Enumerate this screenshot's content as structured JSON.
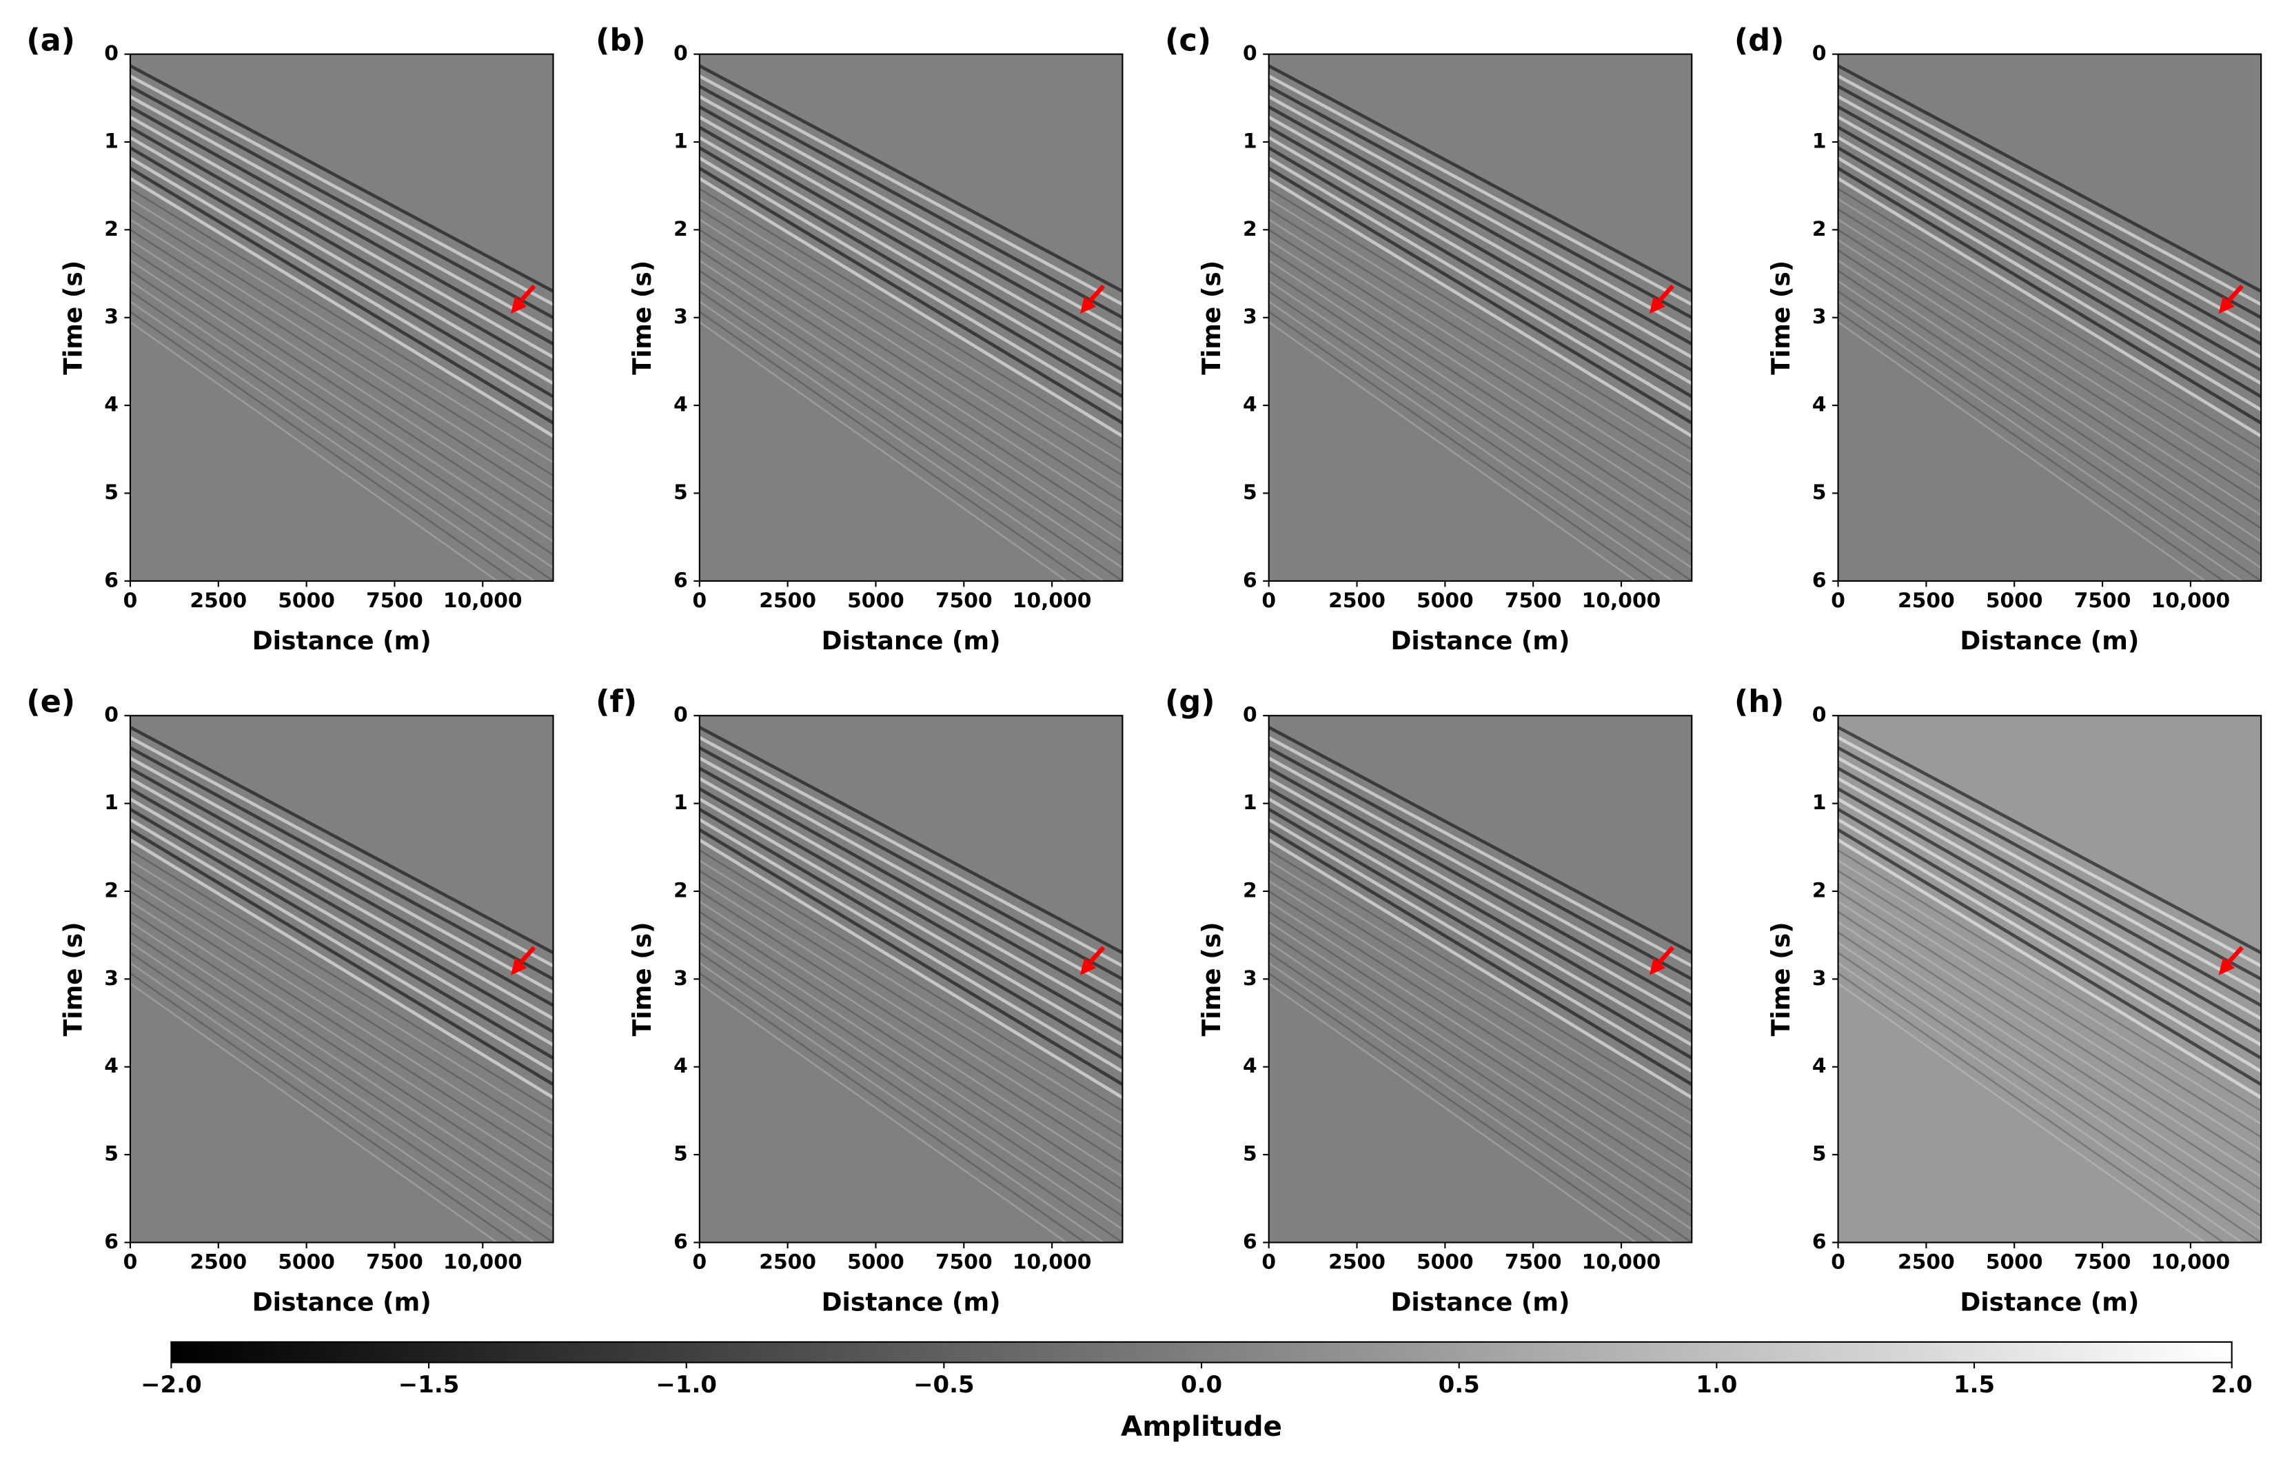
{
  "chart_data": [
    {
      "type": "image",
      "panel_label": "(a)",
      "xlabel": "Distance (m)",
      "ylabel": "Time (s)",
      "xlim": [
        0,
        12000
      ],
      "ylim": [
        6,
        0
      ],
      "xticks": [
        0,
        2500,
        5000,
        7500,
        {
          "value": 10000,
          "label": "10,000"
        }
      ],
      "yticks": [
        0,
        1,
        2,
        3,
        4,
        5,
        6
      ],
      "background": "#808080"
    },
    {
      "type": "image",
      "panel_label": "(b)",
      "xlabel": "Distance (m)",
      "ylabel": "Time (s)",
      "xlim": [
        0,
        12000
      ],
      "ylim": [
        6,
        0
      ],
      "xticks": [
        0,
        2500,
        5000,
        7500,
        {
          "value": 10000,
          "label": "10,000"
        }
      ],
      "yticks": [
        0,
        1,
        2,
        3,
        4,
        5,
        6
      ],
      "background": "#808080"
    },
    {
      "type": "image",
      "panel_label": "(c)",
      "xlabel": "Distance (m)",
      "ylabel": "Time (s)",
      "xlim": [
        0,
        12000
      ],
      "ylim": [
        6,
        0
      ],
      "xticks": [
        0,
        2500,
        5000,
        7500,
        {
          "value": 10000,
          "label": "10,000"
        }
      ],
      "yticks": [
        0,
        1,
        2,
        3,
        4,
        5,
        6
      ],
      "background": "#808080"
    },
    {
      "type": "image",
      "panel_label": "(d)",
      "xlabel": "Distance (m)",
      "ylabel": "Time (s)",
      "xlim": [
        0,
        12000
      ],
      "ylim": [
        6,
        0
      ],
      "xticks": [
        0,
        2500,
        5000,
        7500,
        {
          "value": 10000,
          "label": "10,000"
        }
      ],
      "yticks": [
        0,
        1,
        2,
        3,
        4,
        5,
        6
      ],
      "background": "#808080"
    },
    {
      "type": "image",
      "panel_label": "(e)",
      "xlabel": "Distance (m)",
      "ylabel": "Time (s)",
      "xlim": [
        0,
        12000
      ],
      "ylim": [
        6,
        0
      ],
      "xticks": [
        0,
        2500,
        5000,
        7500,
        {
          "value": 10000,
          "label": "10,000"
        }
      ],
      "yticks": [
        0,
        1,
        2,
        3,
        4,
        5,
        6
      ],
      "background": "#808080"
    },
    {
      "type": "image",
      "panel_label": "(f)",
      "xlabel": "Distance (m)",
      "ylabel": "Time (s)",
      "xlim": [
        0,
        12000
      ],
      "ylim": [
        6,
        0
      ],
      "xticks": [
        0,
        2500,
        5000,
        7500,
        {
          "value": 10000,
          "label": "10,000"
        }
      ],
      "yticks": [
        0,
        1,
        2,
        3,
        4,
        5,
        6
      ],
      "background": "#808080"
    },
    {
      "type": "image",
      "panel_label": "(g)",
      "xlabel": "Distance (m)",
      "ylabel": "Time (s)",
      "xlim": [
        0,
        12000
      ],
      "ylim": [
        6,
        0
      ],
      "xticks": [
        0,
        2500,
        5000,
        7500,
        {
          "value": 10000,
          "label": "10,000"
        }
      ],
      "yticks": [
        0,
        1,
        2,
        3,
        4,
        5,
        6
      ],
      "background": "#808080"
    },
    {
      "type": "image",
      "panel_label": "(h)",
      "xlabel": "Distance (m)",
      "ylabel": "Time (s)",
      "xlim": [
        0,
        12000
      ],
      "ylim": [
        6,
        0
      ],
      "xticks": [
        0,
        2500,
        5000,
        7500,
        {
          "value": 10000,
          "label": "10,000"
        }
      ],
      "yticks": [
        0,
        1,
        2,
        3,
        4,
        5,
        6
      ],
      "background": "#9a9a9a"
    },
    {
      "type": "colorbar",
      "label": "Amplitude",
      "xlim": [
        -2,
        2
      ],
      "colors": [
        "#000000",
        "#ffffff"
      ],
      "xticks": [
        {
          "value": -2,
          "label": "−2.0"
        },
        {
          "value": -1.5,
          "label": "−1.5"
        },
        {
          "value": -1,
          "label": "−1.0"
        },
        {
          "value": -0.5,
          "label": "−0.5"
        },
        {
          "value": 0,
          "label": "0.0"
        },
        0.5,
        {
          "value": 1,
          "label": "1.0"
        },
        1.5,
        {
          "value": 2,
          "label": "2.0"
        }
      ]
    }
  ]
}
